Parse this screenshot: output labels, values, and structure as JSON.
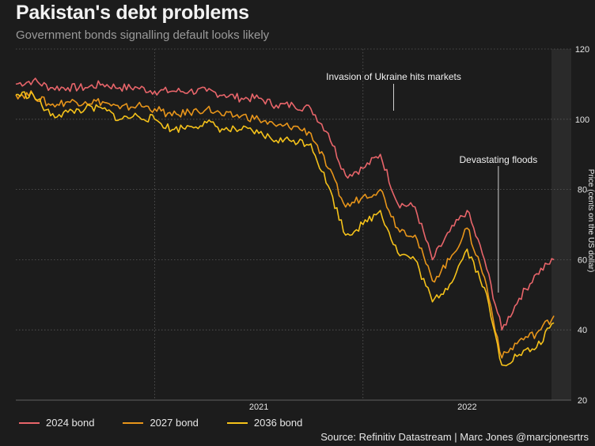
{
  "title": "Pakistan's debt problems",
  "subtitle": "Government bonds signalling default looks likely",
  "source": "Source: Refinitiv Datastream | Marc Jones @marcjonesrtrs",
  "colors": {
    "background": "#1c1c1c",
    "plot_bg": "#1c1c1c",
    "shade": "#2a2a2a",
    "bond2024": "#e8656a",
    "bond2027": "#e8951a",
    "bond2036": "#f5c21a"
  },
  "chart_data": {
    "type": "line",
    "xlabel": "",
    "ylabel": "Price (cents on the US dollar)",
    "x_ticks": [
      "2021",
      "2022"
    ],
    "y_ticks": [
      20,
      40,
      60,
      80,
      100,
      120
    ],
    "ylim": [
      20,
      120
    ],
    "xlim": [
      "2020-05",
      "2022-12"
    ],
    "grid": true,
    "legend_position": "bottom-left",
    "annotations": [
      {
        "text": "Invasion of Ukraine hits markets",
        "x": "2022-02-24"
      },
      {
        "text": "Devastating floods",
        "x": "2022-08-25"
      }
    ],
    "series": [
      {
        "name": "2024 bond",
        "x": [
          "2020-05",
          "2020-06",
          "2020-07",
          "2020-08",
          "2020-09",
          "2020-10",
          "2020-11",
          "2020-12",
          "2021-01",
          "2021-02",
          "2021-03",
          "2021-04",
          "2021-05",
          "2021-06",
          "2021-07",
          "2021-08",
          "2021-09",
          "2021-10",
          "2021-11",
          "2021-12",
          "2022-01",
          "2022-02",
          "2022-03",
          "2022-04",
          "2022-05",
          "2022-06",
          "2022-07",
          "2022-08",
          "2022-09",
          "2022-10",
          "2022-11",
          "2022-12"
        ],
        "values": [
          110,
          111,
          109,
          109,
          109,
          110,
          109,
          109,
          108,
          108,
          108,
          108,
          107,
          106,
          106,
          104,
          104,
          103,
          96,
          84,
          86,
          90,
          76,
          75,
          60,
          68,
          74,
          60,
          40,
          49,
          56,
          60
        ]
      },
      {
        "name": "2027 bond",
        "x": [
          "2020-05",
          "2020-06",
          "2020-07",
          "2020-08",
          "2020-09",
          "2020-10",
          "2020-11",
          "2020-12",
          "2021-01",
          "2021-02",
          "2021-03",
          "2021-04",
          "2021-05",
          "2021-06",
          "2021-07",
          "2021-08",
          "2021-09",
          "2021-10",
          "2021-11",
          "2021-12",
          "2022-01",
          "2022-02",
          "2022-03",
          "2022-04",
          "2022-05",
          "2022-06",
          "2022-07",
          "2022-08",
          "2022-09",
          "2022-10",
          "2022-11",
          "2022-12"
        ],
        "values": [
          107,
          107,
          104,
          105,
          105,
          105,
          103,
          104,
          103,
          101,
          102,
          103,
          101,
          101,
          100,
          98,
          98,
          96,
          86,
          75,
          78,
          80,
          69,
          67,
          54,
          60,
          69,
          55,
          32,
          37,
          39,
          44
        ]
      },
      {
        "name": "2036 bond",
        "x": [
          "2020-05",
          "2020-06",
          "2020-07",
          "2020-08",
          "2020-09",
          "2020-10",
          "2020-11",
          "2020-12",
          "2021-01",
          "2021-02",
          "2021-03",
          "2021-04",
          "2021-05",
          "2021-06",
          "2021-07",
          "2021-08",
          "2021-09",
          "2021-10",
          "2021-11",
          "2021-12",
          "2022-01",
          "2022-02",
          "2022-03",
          "2022-04",
          "2022-05",
          "2022-06",
          "2022-07",
          "2022-08",
          "2022-09",
          "2022-10",
          "2022-11",
          "2022-12"
        ],
        "values": [
          107,
          107,
          101,
          102,
          103,
          103,
          100,
          101,
          100,
          97,
          98,
          99,
          97,
          97,
          96,
          94,
          94,
          93,
          81,
          67,
          70,
          74,
          62,
          60,
          48,
          53,
          63,
          52,
          30,
          33,
          35,
          42
        ]
      }
    ]
  }
}
